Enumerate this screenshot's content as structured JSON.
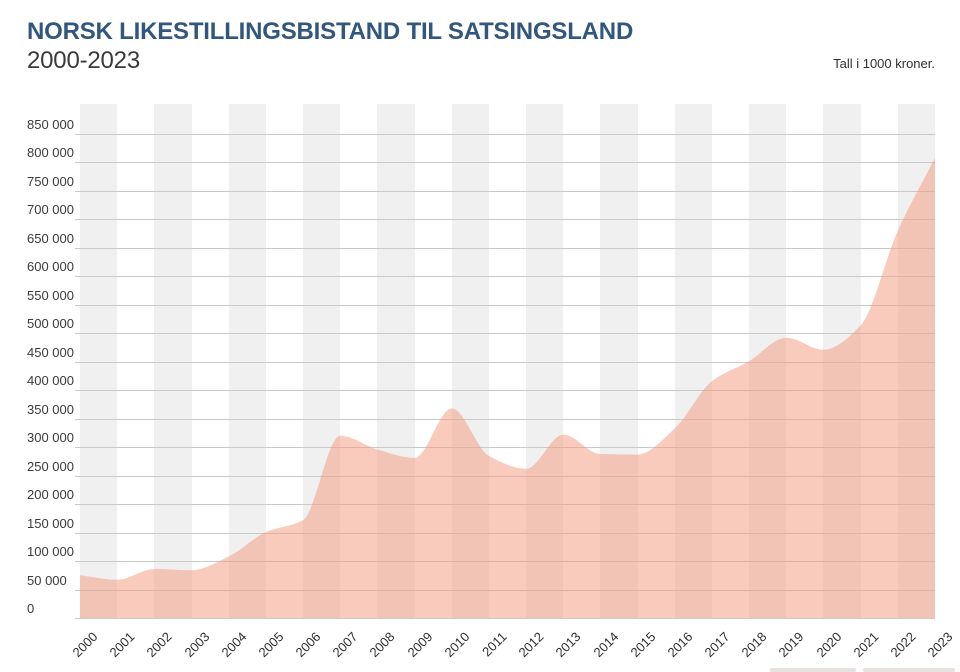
{
  "header": {
    "title": "NORSK LIKESTILLINGSBISTAND TIL SATSINGSLAND",
    "subtitle": "2000-2023",
    "note": "Tall i 1000 kroner."
  },
  "chart_data": {
    "type": "area",
    "title": "NORSK LIKESTILLINGSBISTAND TIL SATSINGSLAND",
    "subtitle": "2000-2023",
    "unit_note": "Tall i 1000 kroner.",
    "xlabel": "",
    "ylabel": "",
    "categories": [
      2000,
      2001,
      2002,
      2003,
      2004,
      2005,
      2006,
      2007,
      2008,
      2009,
      2010,
      2011,
      2012,
      2013,
      2014,
      2015,
      2016,
      2017,
      2018,
      2019,
      2020,
      2021,
      2022,
      2023
    ],
    "values": [
      75000,
      67000,
      86000,
      84000,
      108000,
      151000,
      172000,
      320000,
      296000,
      281000,
      368000,
      285000,
      262000,
      322000,
      288000,
      287000,
      333000,
      416000,
      451000,
      492000,
      471000,
      514000,
      680000,
      808000
    ],
    "ylim": [
      0,
      850000
    ],
    "ytick_step": 50000,
    "yticks": [
      {
        "value": 0,
        "label": "0"
      },
      {
        "value": 50000,
        "label": "50 000"
      },
      {
        "value": 100000,
        "label": "100 000"
      },
      {
        "value": 150000,
        "label": "150 000"
      },
      {
        "value": 200000,
        "label": "200 000"
      },
      {
        "value": 250000,
        "label": "250 000"
      },
      {
        "value": 300000,
        "label": "300 000"
      },
      {
        "value": 350000,
        "label": "350 000"
      },
      {
        "value": 400000,
        "label": "400 000"
      },
      {
        "value": 450000,
        "label": "450 000"
      },
      {
        "value": 500000,
        "label": "500 000"
      },
      {
        "value": 550000,
        "label": "550 000"
      },
      {
        "value": 600000,
        "label": "600 000"
      },
      {
        "value": 650000,
        "label": "650 000"
      },
      {
        "value": 700000,
        "label": "700 000"
      },
      {
        "value": 750000,
        "label": "750 000"
      },
      {
        "value": 800000,
        "label": "800 000"
      },
      {
        "value": 850000,
        "label": "850 000"
      }
    ],
    "grid": true,
    "legend_position": "none",
    "colors": {
      "area_fill": "rgba(243,155,128,0.52)",
      "area_fill_hex": "#f9cdbe",
      "title_color": "#31577e",
      "stripe_color": "#f0f0f0",
      "gridline_color": "#c9c9c9",
      "tick_label_color": "#2e2e2e"
    },
    "smoothing": "monotone"
  }
}
